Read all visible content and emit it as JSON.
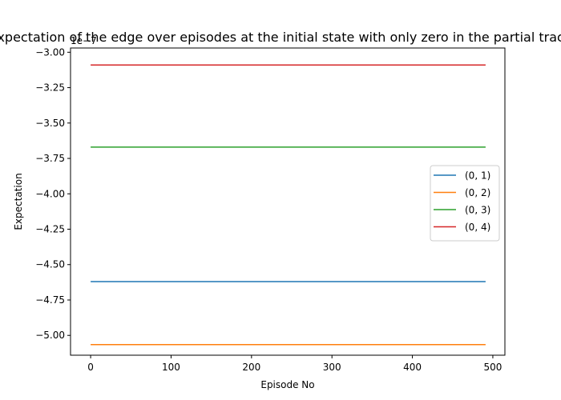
{
  "chart_data": {
    "type": "line",
    "title": "Expectation of the edge over episodes at the initial state with only zero in the partial trace",
    "xlabel": "Episode No",
    "ylabel": "Expectation",
    "offset_label": "1e−7",
    "xlim": [
      -25,
      515
    ],
    "ylim": [
      -5.14,
      -2.97
    ],
    "x_ticks": [
      0,
      100,
      200,
      300,
      400,
      500
    ],
    "x_tick_labels": [
      "0",
      "100",
      "200",
      "300",
      "400",
      "500"
    ],
    "y_ticks": [
      -3.0,
      -3.25,
      -3.5,
      -3.75,
      -4.0,
      -4.25,
      -4.5,
      -4.75,
      -5.0
    ],
    "y_tick_labels": [
      "−3.00",
      "−3.25",
      "−3.50",
      "−3.75",
      "−4.00",
      "−4.25",
      "−4.50",
      "−4.75",
      "−5.00"
    ],
    "x": [
      0,
      491
    ],
    "series": [
      {
        "name": "(0, 1)",
        "color": "#1f77b4",
        "values": [
          -4.62,
          -4.62
        ]
      },
      {
        "name": "(0, 2)",
        "color": "#ff7f0e",
        "values": [
          -5.065,
          -5.065
        ]
      },
      {
        "name": "(0, 3)",
        "color": "#2ca02c",
        "values": [
          -3.67,
          -3.67
        ]
      },
      {
        "name": "(0, 4)",
        "color": "#d62728",
        "values": [
          -3.09,
          -3.09
        ]
      }
    ],
    "legend_position": "center-right",
    "grid": false
  }
}
